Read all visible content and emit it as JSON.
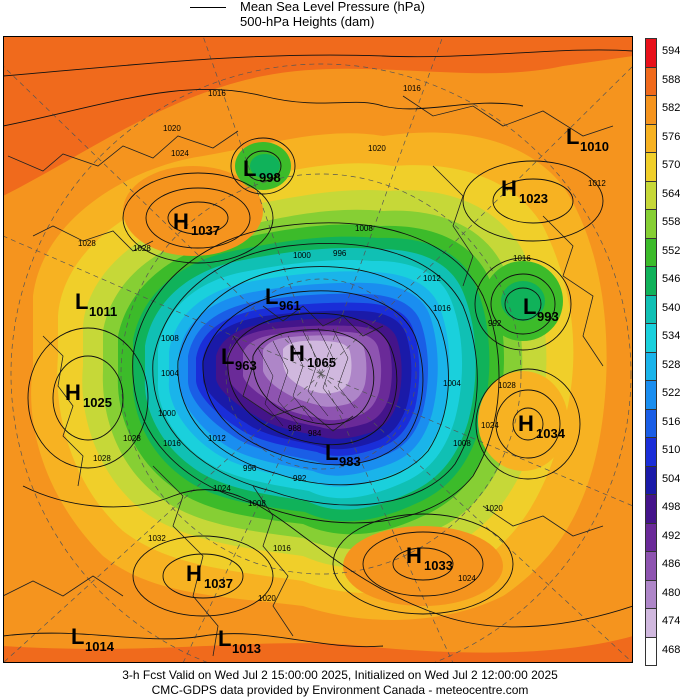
{
  "legend": {
    "line1": "Mean Sea Level Pressure (hPa)",
    "line2": "500-hPa Heights (dam)"
  },
  "colorbar": {
    "levels": [
      "594",
      "588",
      "582",
      "576",
      "570",
      "564",
      "558",
      "552",
      "546",
      "540",
      "534",
      "528",
      "522",
      "516",
      "510",
      "504",
      "498",
      "492",
      "486",
      "480",
      "474",
      "468"
    ],
    "colors": [
      "#e8101a",
      "#f06a1c",
      "#f5941e",
      "#f7b222",
      "#f0cf2a",
      "#c6d838",
      "#86cf34",
      "#3cbb2a",
      "#10b25a",
      "#10c0b4",
      "#1ad0dc",
      "#1ab4ea",
      "#1a8ef0",
      "#1a5ee6",
      "#1a2ed8",
      "#1a1aa8",
      "#44148a",
      "#6a2a98",
      "#8e54b0",
      "#ae86c8",
      "#d0b8de",
      "#ffffff"
    ]
  },
  "systems": [
    {
      "letter": "L",
      "value": "998"
    },
    {
      "letter": "L",
      "value": "1010"
    },
    {
      "letter": "H",
      "value": "1037"
    },
    {
      "letter": "H",
      "value": "1023"
    },
    {
      "letter": "L",
      "value": "1011"
    },
    {
      "letter": "L",
      "value": "961"
    },
    {
      "letter": "L",
      "value": "993"
    },
    {
      "letter": "L",
      "value": "963"
    },
    {
      "letter": "H",
      "value": "1065"
    },
    {
      "letter": "H",
      "value": "1025"
    },
    {
      "letter": "H",
      "value": "1034"
    },
    {
      "letter": "L",
      "value": "983"
    },
    {
      "letter": "H",
      "value": "1033"
    },
    {
      "letter": "H",
      "value": "1037"
    },
    {
      "letter": "L",
      "value": "1014"
    },
    {
      "letter": "L",
      "value": "1013"
    }
  ],
  "isobar_labels": [
    "1016",
    "1020",
    "1024",
    "1028",
    "1012",
    "1008",
    "1004",
    "1000",
    "996",
    "992",
    "988",
    "984",
    "1032"
  ],
  "footer": {
    "line1": "3-h Fcst Valid on Wed Jul  2 15:00:00 2025, Initialized on Wed Jul  2 12:00:00 2025",
    "line2": "CMC-GDPS data provided by Environment Canada - meteocentre.com"
  }
}
